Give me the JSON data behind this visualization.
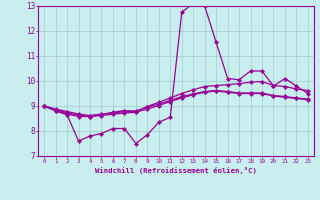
{
  "xlabel": "Windchill (Refroidissement éolien,°C)",
  "bg_color": "#c8eef0",
  "line_color": "#990099",
  "grid_color": "#a0cccc",
  "xlim": [
    -0.5,
    23.5
  ],
  "ylim": [
    7,
    13
  ],
  "yticks": [
    7,
    8,
    9,
    10,
    11,
    12,
    13
  ],
  "xticks": [
    0,
    1,
    2,
    3,
    4,
    5,
    6,
    7,
    8,
    9,
    10,
    11,
    12,
    13,
    14,
    15,
    16,
    17,
    18,
    19,
    20,
    21,
    22,
    23
  ],
  "series1": [
    9.0,
    8.8,
    8.65,
    7.6,
    7.8,
    7.9,
    8.1,
    8.1,
    7.5,
    7.85,
    8.35,
    8.55,
    12.75,
    13.1,
    13.0,
    11.55,
    10.1,
    10.05,
    10.4,
    10.4,
    9.8,
    10.1,
    9.8,
    9.5
  ],
  "series2": [
    9.0,
    8.82,
    8.68,
    8.58,
    8.58,
    8.65,
    8.75,
    8.82,
    8.78,
    8.98,
    9.15,
    9.32,
    9.5,
    9.65,
    9.78,
    9.82,
    9.85,
    9.9,
    9.95,
    9.98,
    9.82,
    9.78,
    9.68,
    9.62
  ],
  "series3": [
    9.0,
    8.88,
    8.78,
    8.68,
    8.62,
    8.68,
    8.72,
    8.78,
    8.8,
    8.95,
    9.08,
    9.22,
    9.38,
    9.48,
    9.58,
    9.62,
    9.58,
    9.52,
    9.52,
    9.52,
    9.42,
    9.38,
    9.32,
    9.28
  ],
  "series4": [
    9.0,
    8.85,
    8.73,
    8.63,
    8.58,
    8.62,
    8.67,
    8.72,
    8.75,
    8.88,
    9.02,
    9.18,
    9.32,
    9.45,
    9.55,
    9.6,
    9.55,
    9.5,
    9.5,
    9.5,
    9.4,
    9.35,
    9.3,
    9.25
  ]
}
